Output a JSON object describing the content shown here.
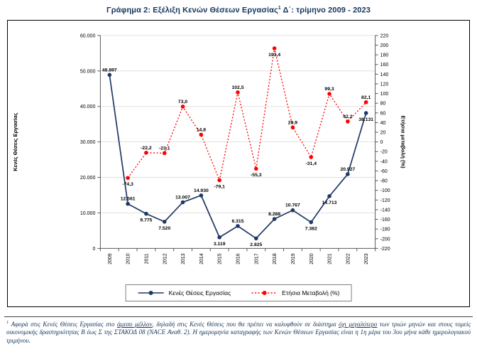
{
  "header": {
    "title_prefix": "Γράφημα 2: Εξέλιξη Κενών Θέσεων Εργασίας",
    "title_sup": "1",
    "title_suffix": " Δ΄: τρίμηνο 2009 - 2023"
  },
  "chart_data": {
    "type": "line",
    "title": "Γράφημα 2: Εξέλιξη Κενών Θέσεων Εργασίας¹ Δ΄: τρίμηνο 2009 - 2023",
    "categories": [
      "2009",
      "2010",
      "2011",
      "2012",
      "2013",
      "2014",
      "2015",
      "2016",
      "2017",
      "2018",
      "2019",
      "2020",
      "2021",
      "2022",
      "2023"
    ],
    "series": [
      {
        "name": "Κενές Θέσεις Εργασίας",
        "axis": "left",
        "color": "#1F3864",
        "width": 1.7,
        "dash": null,
        "values": [
          48897,
          12561,
          9775,
          7520,
          13007,
          14930,
          3119,
          6315,
          2825,
          8288,
          10767,
          7382,
          14713,
          20927,
          38131
        ],
        "labels": [
          "48.897",
          "12.561",
          "9.775",
          "7.520",
          "13.007",
          "14.930",
          "3.119",
          "6.315",
          "2.825",
          "8.288",
          "10.767",
          "7.382",
          "14.713",
          "20.927",
          "38.131"
        ],
        "label_side": [
          "above",
          "above",
          "below",
          "below",
          "above",
          "above",
          "below",
          "above",
          "below",
          "above",
          "above",
          "below",
          "below",
          "above",
          "below"
        ]
      },
      {
        "name": "Ετήσια Μεταβολή (%)",
        "axis": "right",
        "color": "#FF0000",
        "width": 1.3,
        "dash": "2,2.5",
        "values": [
          null,
          -74.3,
          -22.2,
          -23.1,
          73.0,
          14.8,
          -79.1,
          102.5,
          -55.3,
          193.4,
          29.9,
          -31.4,
          99.3,
          42.2,
          82.1
        ],
        "labels": [
          null,
          "-74,3",
          "-22,2",
          "-23,1",
          "73,0",
          "14,8",
          "-79,1",
          "102,5",
          "-55,3",
          "193,4",
          "29,9",
          "-31,4",
          "99,3",
          "42,2",
          "82,1"
        ],
        "label_side": [
          null,
          "below",
          "above",
          "above",
          "above",
          "above",
          "below",
          "above",
          "below",
          "below",
          "above",
          "below",
          "above",
          "above",
          "above"
        ]
      }
    ],
    "left_axis": {
      "title": "Κενές Θέσεις Εργασίας",
      "min": 0,
      "max": 60000,
      "step": 10000,
      "tick_labels": [
        "0",
        "10.000",
        "20.000",
        "30.000",
        "40.000",
        "50.000",
        "60.000"
      ]
    },
    "right_axis": {
      "title": "Ετήσια μεταβολή (%)",
      "min": -220,
      "max": 220,
      "step": 20
    },
    "legend": [
      "Κενές Θέσεις Εργασίας",
      "Ετήσια Μεταβολή (%)"
    ],
    "legend_position": "bottom",
    "grid": true,
    "xlabel": "",
    "ylabel": "Κενές Θέσεις Εργασίας",
    "ylabel_right": "Ετήσια μεταβολή (%)",
    "ylim": [
      0,
      60000
    ],
    "ylim_right": [
      -220,
      220
    ],
    "colors": {
      "vacancies": "#1F3864",
      "annual_change": "#FF0000",
      "grid": "#D9D9D9",
      "axis": "#595959",
      "title": "#17365D"
    }
  },
  "footnote": {
    "sup": "1",
    "segments": [
      {
        "text": "Αφορά στις Κενές Θέσεις Εργασίας στο ",
        "underline": false
      },
      {
        "text": "άμεσο μέλλον",
        "underline": true
      },
      {
        "text": ", δηλαδή στις Κενές Θέσεις που θα πρέπει να καλυφθούν σε διάστημα ",
        "underline": false
      },
      {
        "text": "όχι μεγαλύτερο",
        "underline": true
      },
      {
        "text": " των τριών μηνών και στους τομείς οικονομικής δραστηριότητας Β έως Σ της ΣΤΑΚΟΔ 08 (NACE Αναθ. 2). Η ημερομηνία καταγραφής των Κενών Θέσεων Εργασίας είναι η 1η μέρα του 3ου μήνα κάθε ημερολογιακού τριμήνου.",
        "underline": false
      }
    ]
  }
}
